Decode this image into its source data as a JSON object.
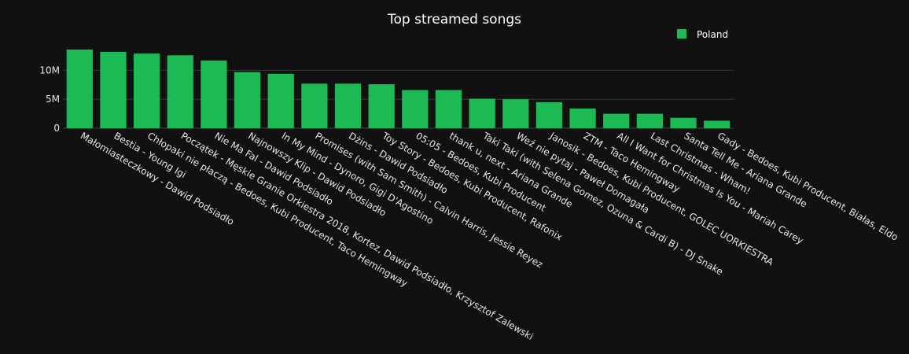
{
  "chart_data": {
    "type": "bar",
    "title": "Top streamed songs",
    "xlabel": "",
    "ylabel": "",
    "ylim": [
      0,
      14000000
    ],
    "yticks": [
      0,
      5000000,
      10000000
    ],
    "ytick_labels": [
      "0",
      "5M",
      "10M"
    ],
    "grid": true,
    "legend": "top-right",
    "categories": [
      "Małomiasteczkowy - Dawid Podsiadło",
      "Bestia - Young Igi",
      "Chłopaki nie płaczą - Bedoes, Kubi Producent, Taco Hemingway",
      "Początek - Męskie Granie Orkiestra 2018, Kortez, Dawid Podsiadło, Krzysztof Zalewski",
      "Nie Ma Fal - Dawid Podsiadło",
      "Najnowszy Klip - Dawid Podsiadło",
      "In My Mind - Dynoro, Gigi D'Agostino",
      "Promises (with Sam Smith) - Calvin Harris, Jessie Reyez",
      "Dżins - Dawid Podsiadło",
      "Toy Story - Bedoes, Kubi Producent, Rafonix",
      "05:05 - Bedoes, Kubi Producent",
      "thank u, next - Ariana Grande",
      "Taki Taki (with Selena Gomez, Ozuna & Cardi B) - DJ Snake",
      "Weź nie pytaj - Paweł Domagała",
      "Janosik - Bedoes, Kubi Producent, GOLEC UORKIESTRA",
      "ZTM - Taco Hemingway",
      "All I Want for Christmas Is You - Mariah Carey",
      "Last Christmas - Wham!",
      "Santa Tell Me - Ariana Grande",
      "Gady - Bedoes, Kubi Producent, Białas, Eldo"
    ],
    "series": [
      {
        "name": "Poland",
        "color": "#1db954",
        "values": [
          13600000,
          13200000,
          12900000,
          12600000,
          11700000,
          9700000,
          9400000,
          7700000,
          7700000,
          7600000,
          6600000,
          6600000,
          5100000,
          5000000,
          4500000,
          3400000,
          2500000,
          2500000,
          1800000,
          1300000
        ]
      }
    ]
  }
}
